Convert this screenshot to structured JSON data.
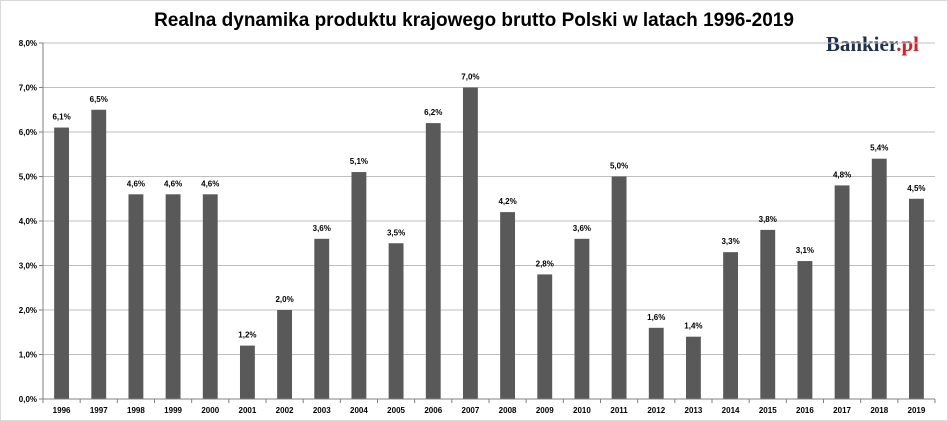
{
  "logo": {
    "text_main": "Bankier",
    "text_dot": ".pl"
  },
  "colors": {
    "bar": "#595959",
    "grid": "#bfbfbf",
    "axis": "#808080",
    "logo_main": "#1f2f4f",
    "logo_dot": "#d4202a"
  },
  "chart_data": {
    "type": "bar",
    "title": "Realna dynamika produktu krajowego brutto Polski w latach 1996-2019",
    "xlabel": "",
    "ylabel": "",
    "ylim": [
      0,
      8
    ],
    "yticks": [
      "0,0%",
      "1,0%",
      "2,0%",
      "3,0%",
      "4,0%",
      "5,0%",
      "6,0%",
      "7,0%",
      "8,0%"
    ],
    "grid": true,
    "legend": "none",
    "categories": [
      "1996",
      "1997",
      "1998",
      "1999",
      "2000",
      "2001",
      "2002",
      "2003",
      "2004",
      "2005",
      "2006",
      "2007",
      "2008",
      "2009",
      "2010",
      "2011",
      "2012",
      "2013",
      "2014",
      "2015",
      "2016",
      "2017",
      "2018",
      "2019"
    ],
    "values": [
      6.1,
      6.5,
      4.6,
      4.6,
      4.6,
      1.2,
      2.0,
      3.6,
      5.1,
      3.5,
      6.2,
      7.0,
      4.2,
      2.8,
      3.6,
      5.0,
      1.6,
      1.4,
      3.3,
      3.8,
      3.1,
      4.8,
      5.4,
      4.5
    ],
    "value_labels": [
      "6,1%",
      "6,5%",
      "4,6%",
      "4,6%",
      "4,6%",
      "1,2%",
      "2,0%",
      "3,6%",
      "5,1%",
      "3,5%",
      "6,2%",
      "7,0%",
      "4,2%",
      "2,8%",
      "3,6%",
      "5,0%",
      "1,6%",
      "1,4%",
      "3,3%",
      "3,8%",
      "3,1%",
      "4,8%",
      "5,4%",
      "4,5%"
    ]
  }
}
